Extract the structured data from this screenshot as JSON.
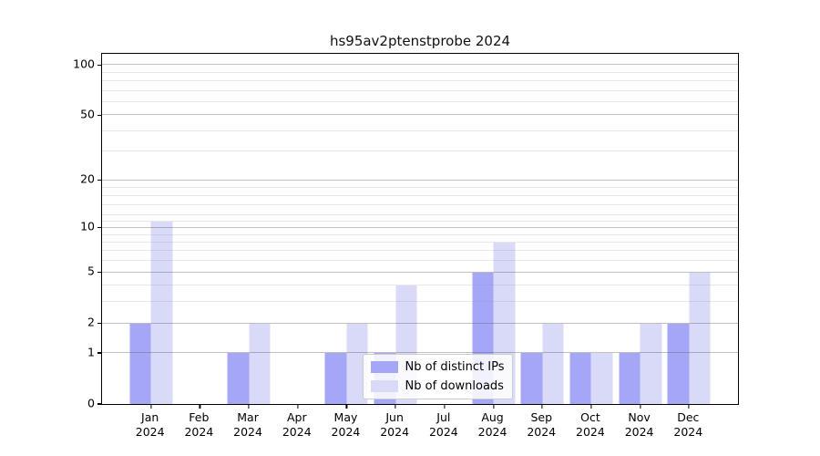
{
  "title": "hs95av2ptenstprobe 2024",
  "chart_data": {
    "type": "bar",
    "title": "hs95av2ptenstprobe 2024",
    "categories": [
      "Jan",
      "Feb",
      "Mar",
      "Apr",
      "May",
      "Jun",
      "Jul",
      "Aug",
      "Sep",
      "Oct",
      "Nov",
      "Dec"
    ],
    "year_label": "2024",
    "series": [
      {
        "name": "Nb of distinct IPs",
        "color": "#a6a6f7",
        "values": [
          2,
          0,
          1,
          0,
          1,
          1,
          0,
          5,
          1,
          1,
          1,
          2
        ]
      },
      {
        "name": "Nb of downloads",
        "color": "#d9d9f8",
        "values": [
          11,
          0,
          2,
          0,
          2,
          4,
          0,
          8,
          2,
          1,
          2,
          5
        ]
      }
    ],
    "xlabel": "",
    "ylabel": "",
    "yscale": "log1p",
    "ylim": [
      0,
      116.5
    ],
    "yticks": [
      0,
      1,
      2,
      5,
      10,
      20,
      50,
      100
    ],
    "minor_yticks": [
      3,
      4,
      6,
      7,
      8,
      9,
      11,
      12,
      14,
      16,
      18,
      30,
      40,
      60,
      70,
      80,
      90
    ],
    "grid": "major-and-minor",
    "legend_position": "lower center",
    "spines": "full-box"
  }
}
